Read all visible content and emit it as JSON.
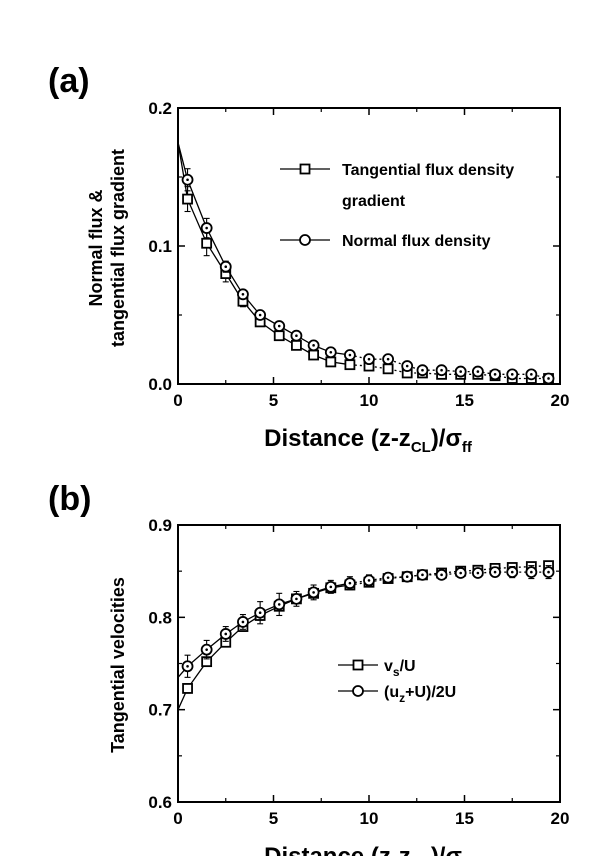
{
  "chart_data": [
    {
      "panel": "(a)",
      "type": "line",
      "xlabel": "Distance (z-z",
      "xlabel_sub": "CL",
      "xlabel_after": ")/σ",
      "xlabel_sub2": "ff",
      "ylabel_line1": "Normal flux &",
      "ylabel_line2": "tangential flux gradient",
      "xlim": [
        0,
        20
      ],
      "ylim": [
        0,
        0.2
      ],
      "xticks": [
        0,
        5,
        10,
        15,
        20
      ],
      "xtick_labels": [
        "0",
        "5",
        "10",
        "15",
        "20"
      ],
      "yticks": [
        0,
        0.1,
        0.2
      ],
      "ytick_labels": [
        "0.0",
        "0.1",
        "0.2"
      ],
      "legend_position": "top-right",
      "series": [
        {
          "name": "Tangential flux density",
          "name_line2": "gradient",
          "marker": "square",
          "line_start": [
            0,
            0.175
          ],
          "x": [
            0.5,
            1.5,
            2.5,
            3.4,
            4.3,
            5.3,
            6.2,
            7.1,
            8.0,
            9.0,
            10.0,
            11.0,
            12.0,
            12.8,
            13.8,
            14.8,
            15.7,
            16.6,
            17.5,
            18.5,
            19.4
          ],
          "y": [
            0.134,
            0.102,
            0.08,
            0.06,
            0.045,
            0.035,
            0.028,
            0.021,
            0.016,
            0.014,
            0.013,
            0.011,
            0.008,
            0.008,
            0.007,
            0.007,
            0.007,
            0.006,
            0.004,
            0.004,
            0.004
          ],
          "err": [
            0.009,
            0.009,
            0.006,
            0.004,
            0.003,
            0.003,
            0.002,
            0.002,
            0.002,
            0.002,
            0.002,
            0.002,
            0.002,
            0.002,
            0.002,
            0.002,
            0.002,
            0.002,
            0.002,
            0.002,
            0.002
          ]
        },
        {
          "name": "Normal flux density",
          "marker": "circle",
          "line_start": [
            0,
            0.175
          ],
          "x": [
            0.5,
            1.5,
            2.5,
            3.4,
            4.3,
            5.3,
            6.2,
            7.1,
            8.0,
            9.0,
            10.0,
            11.0,
            12.0,
            12.8,
            13.8,
            14.8,
            15.7,
            16.6,
            17.5,
            18.5,
            19.4
          ],
          "y": [
            0.148,
            0.113,
            0.085,
            0.065,
            0.05,
            0.042,
            0.035,
            0.028,
            0.023,
            0.021,
            0.018,
            0.018,
            0.013,
            0.01,
            0.01,
            0.009,
            0.009,
            0.007,
            0.007,
            0.007,
            0.004
          ],
          "err": [
            0.008,
            0.007,
            0.004,
            0.003,
            0.003,
            0.003,
            0.002,
            0.002,
            0.002,
            0.002,
            0.002,
            0.002,
            0.002,
            0.002,
            0.002,
            0.002,
            0.002,
            0.002,
            0.002,
            0.002,
            0.002
          ]
        }
      ]
    },
    {
      "panel": "(b)",
      "type": "line",
      "xlabel": "Distance (z-z",
      "xlabel_sub": "CL",
      "xlabel_after": ")/σ",
      "xlabel_sub2": "ff",
      "ylabel_line1": "Tangential velocities",
      "xlim": [
        0,
        20
      ],
      "ylim": [
        0.6,
        0.9
      ],
      "xticks": [
        0,
        5,
        10,
        15,
        20
      ],
      "xtick_labels": [
        "0",
        "5",
        "10",
        "15",
        "20"
      ],
      "yticks": [
        0.6,
        0.7,
        0.8,
        0.9
      ],
      "ytick_labels": [
        "0.6",
        "0.7",
        "0.8",
        "0.9"
      ],
      "legend_position": "center-right",
      "series": [
        {
          "name": "v",
          "name_sub": "s",
          "name_after": "/U",
          "marker": "square",
          "line_start": [
            0,
            0.7
          ],
          "x": [
            0.5,
            1.5,
            2.5,
            3.4,
            4.3,
            5.3,
            6.2,
            7.1,
            8.0,
            9.0,
            10.0,
            11.0,
            12.0,
            12.8,
            13.8,
            14.8,
            15.7,
            16.6,
            17.5,
            18.5,
            19.4
          ],
          "y": [
            0.723,
            0.752,
            0.773,
            0.79,
            0.802,
            0.812,
            0.82,
            0.826,
            0.832,
            0.835,
            0.838,
            0.842,
            0.844,
            0.846,
            0.848,
            0.85,
            0.851,
            0.853,
            0.854,
            0.855,
            0.856
          ],
          "err": [
            0.005,
            0.005,
            0.005,
            0.005,
            0.005,
            0.005,
            0.004,
            0.004,
            0.004,
            0.004,
            0.004,
            0.003,
            0.003,
            0.003,
            0.003,
            0.003,
            0.003,
            0.003,
            0.003,
            0.003,
            0.003
          ]
        },
        {
          "name": "(u",
          "name_sub": "z",
          "name_after": "+U)/2U",
          "marker": "circle",
          "line_start": [
            0,
            0.735
          ],
          "x": [
            0.5,
            1.5,
            2.5,
            3.4,
            4.3,
            5.3,
            6.2,
            7.1,
            8.0,
            9.0,
            10.0,
            11.0,
            12.0,
            12.8,
            13.8,
            14.8,
            15.7,
            16.6,
            17.5,
            18.5,
            19.4
          ],
          "y": [
            0.747,
            0.765,
            0.782,
            0.795,
            0.805,
            0.814,
            0.82,
            0.827,
            0.833,
            0.837,
            0.84,
            0.843,
            0.844,
            0.846,
            0.846,
            0.848,
            0.848,
            0.849,
            0.849,
            0.849,
            0.849
          ],
          "err": [
            0.012,
            0.01,
            0.008,
            0.008,
            0.012,
            0.012,
            0.008,
            0.008,
            0.007,
            0.007,
            0.006,
            0.005,
            0.004,
            0.004,
            0.004,
            0.004,
            0.004,
            0.005,
            0.006,
            0.007,
            0.007
          ]
        }
      ]
    }
  ]
}
